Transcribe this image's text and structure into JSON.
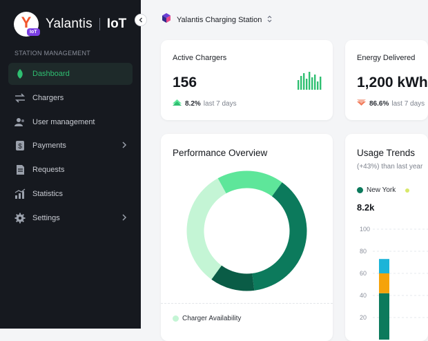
{
  "brand": {
    "logo_letter": "Y",
    "badge": "IoT",
    "name": "Yalantis",
    "suffix": "IoT"
  },
  "sidebar": {
    "section_title": "STATION MANAGEMENT",
    "items": [
      {
        "label": "Dashboard",
        "icon": "leaf-icon",
        "active": true
      },
      {
        "label": "Chargers",
        "icon": "arrows-swap-icon"
      },
      {
        "label": "User management",
        "icon": "users-icon"
      },
      {
        "label": "Payments",
        "icon": "dollar-icon",
        "has_submenu": true
      },
      {
        "label": "Requests",
        "icon": "document-icon"
      },
      {
        "label": "Statistics",
        "icon": "bar-chart-icon"
      },
      {
        "label": "Settings",
        "icon": "gear-icon",
        "has_submenu": true
      }
    ]
  },
  "header": {
    "station_name": "Yalantis Charging Station"
  },
  "kpis": [
    {
      "title": "Active Chargers",
      "value": "156",
      "delta": "8.2%",
      "period": "last 7 days",
      "trend": "up"
    },
    {
      "title": "Energy Delivered",
      "value": "1,200 kWh",
      "delta": "86.6%",
      "period": "last 7 days",
      "trend": "down"
    }
  ],
  "performance": {
    "title": "Performance Overview",
    "legend_first": "Charger Availability",
    "colors": {
      "dark": "#0c7a5c",
      "darker": "#0a5c46",
      "light": "#5ee69a",
      "pale": "#c4f5d5"
    }
  },
  "usage": {
    "title": "Usage Trends",
    "subtitle": "(+43%) than last year",
    "legend": "New York",
    "value": "8.2k",
    "yticks": [
      "100",
      "80",
      "60",
      "40",
      "20"
    ]
  },
  "chart_data": [
    {
      "type": "pie",
      "title": "Performance Overview",
      "slices": [
        {
          "name": "Charger Availability",
          "value": 32,
          "color": "#c4f5d5"
        },
        {
          "name": "",
          "value": 18,
          "color": "#5ee69a"
        },
        {
          "name": "",
          "value": 38,
          "color": "#0c7a5c"
        },
        {
          "name": "",
          "value": 12,
          "color": "#0a5c46"
        }
      ]
    },
    {
      "type": "bar",
      "title": "Usage Trends",
      "ylim": [
        0,
        100
      ],
      "yticks": [
        100,
        80,
        60,
        40,
        20
      ],
      "series_stacks": [
        {
          "name": "",
          "color": "#0c7a5c",
          "value": 42
        },
        {
          "name": "",
          "color": "#f5a30b",
          "value": 18
        },
        {
          "name": "",
          "color": "#1cb4d8",
          "value": 13
        }
      ]
    }
  ]
}
